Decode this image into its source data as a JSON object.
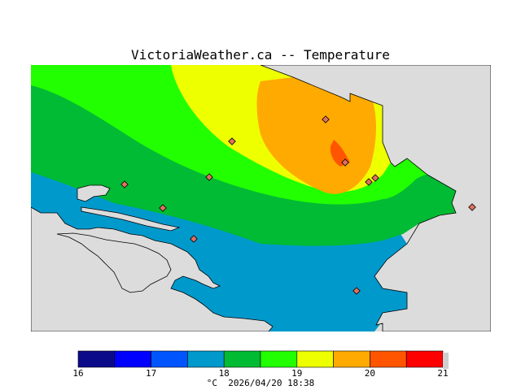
{
  "title": "VictoriaWeather.ca -- Temperature",
  "legend": {
    "unit": "°C",
    "timestamp": "2026/04/20 18:38",
    "ticks": [
      "16",
      "17",
      "18",
      "19",
      "20",
      "21"
    ],
    "colors": [
      "#0b0b8a",
      "#0000ff",
      "#0055ff",
      "#0099cc",
      "#00bb33",
      "#22ff00",
      "#eeff00",
      "#ffaa00",
      "#ff5500",
      "#ff0000"
    ]
  },
  "colors": {
    "land_background": "#dcdcdc",
    "coastline": "#000000",
    "station_marker": "#e07060"
  }
}
